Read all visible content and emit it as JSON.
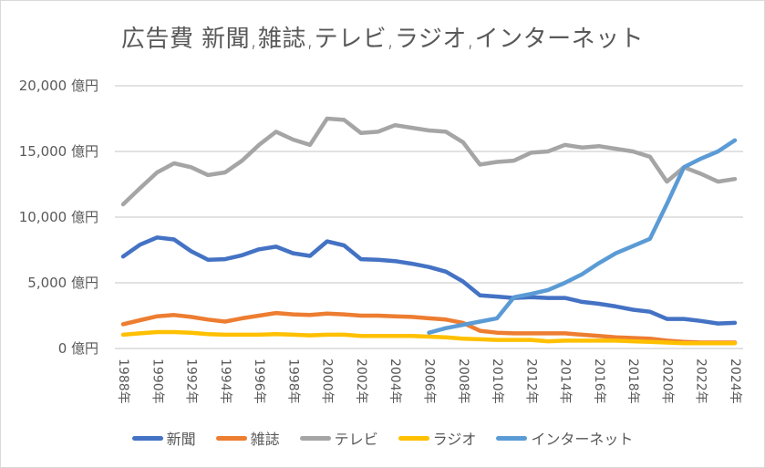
{
  "chart_data": {
    "type": "line",
    "title": "広告費 新聞,雑誌,テレビ,ラジオ,インターネット",
    "xlabel": "",
    "ylabel": "",
    "ylim": [
      0,
      20000
    ],
    "y_ticks": [
      0,
      5000,
      10000,
      15000,
      20000
    ],
    "y_tick_labels": [
      "0 億円",
      "5,000 億円",
      "10,000 億円",
      "15,000 億円",
      "20,000 億円"
    ],
    "grid": true,
    "legend_position": "bottom",
    "x": [
      1988,
      1989,
      1990,
      1991,
      1992,
      1993,
      1994,
      1995,
      1996,
      1997,
      1998,
      1999,
      2000,
      2001,
      2002,
      2003,
      2004,
      2005,
      2006,
      2007,
      2008,
      2009,
      2010,
      2011,
      2012,
      2013,
      2014,
      2015,
      2016,
      2017,
      2018,
      2019,
      2020,
      2021,
      2022,
      2023,
      2024
    ],
    "x_tick_labels": [
      "1988年",
      "1990年",
      "1992年",
      "1994年",
      "1996年",
      "1998年",
      "2000年",
      "2002年",
      "2004年",
      "2006年",
      "2008年",
      "2010年",
      "2012年",
      "2014年",
      "2016年",
      "2018年",
      "2020年",
      "2022年",
      "2024年"
    ],
    "x_tick_years": [
      1988,
      1990,
      1992,
      1994,
      1996,
      1998,
      2000,
      2002,
      2004,
      2006,
      2008,
      2010,
      2012,
      2014,
      2016,
      2018,
      2020,
      2022,
      2024
    ],
    "series": [
      {
        "name": "新聞",
        "color": "#4472c4",
        "values": [
          7000,
          7900,
          8450,
          8300,
          7400,
          6750,
          6800,
          7100,
          7550,
          7750,
          7250,
          7050,
          8150,
          7850,
          6800,
          6750,
          6650,
          6450,
          6200,
          5850,
          5100,
          4050,
          3950,
          3850,
          3900,
          3850,
          3850,
          3550,
          3400,
          3200,
          2950,
          2800,
          2250,
          2250,
          2100,
          1900,
          1950
        ]
      },
      {
        "name": "雑誌",
        "color": "#ed7d31",
        "values": [
          1850,
          2150,
          2450,
          2550,
          2400,
          2200,
          2050,
          2300,
          2500,
          2700,
          2600,
          2550,
          2650,
          2600,
          2500,
          2500,
          2450,
          2400,
          2300,
          2200,
          1950,
          1350,
          1200,
          1150,
          1150,
          1150,
          1150,
          1050,
          950,
          850,
          800,
          750,
          600,
          500,
          450,
          450,
          450
        ]
      },
      {
        "name": "テレビ",
        "color": "#a5a5a5",
        "values": [
          10970,
          12200,
          13400,
          14100,
          13800,
          13200,
          13400,
          14300,
          15500,
          16500,
          15900,
          15500,
          17500,
          17400,
          16400,
          16500,
          17000,
          16800,
          16600,
          16500,
          15700,
          14000,
          14200,
          14300,
          14900,
          15000,
          15500,
          15300,
          15400,
          15200,
          15000,
          14600,
          12700,
          13800,
          13300,
          12700,
          12900
        ]
      },
      {
        "name": "ラジオ",
        "color": "#ffc000",
        "values": [
          1050,
          1150,
          1250,
          1250,
          1200,
          1100,
          1050,
          1050,
          1050,
          1100,
          1050,
          1000,
          1050,
          1050,
          950,
          950,
          950,
          950,
          900,
          850,
          750,
          700,
          650,
          650,
          650,
          550,
          600,
          600,
          600,
          600,
          550,
          500,
          450,
          400,
          400,
          400,
          400
        ]
      },
      {
        "name": "インターネット",
        "color": "#5b9bd5",
        "values": [
          null,
          null,
          null,
          null,
          null,
          null,
          null,
          null,
          null,
          null,
          null,
          null,
          null,
          null,
          null,
          null,
          null,
          null,
          1200,
          1550,
          1800,
          2050,
          2300,
          3900,
          4150,
          4450,
          5000,
          5650,
          6500,
          7250,
          7800,
          8350,
          11000,
          13800,
          14450,
          15000,
          15850
        ]
      }
    ]
  }
}
